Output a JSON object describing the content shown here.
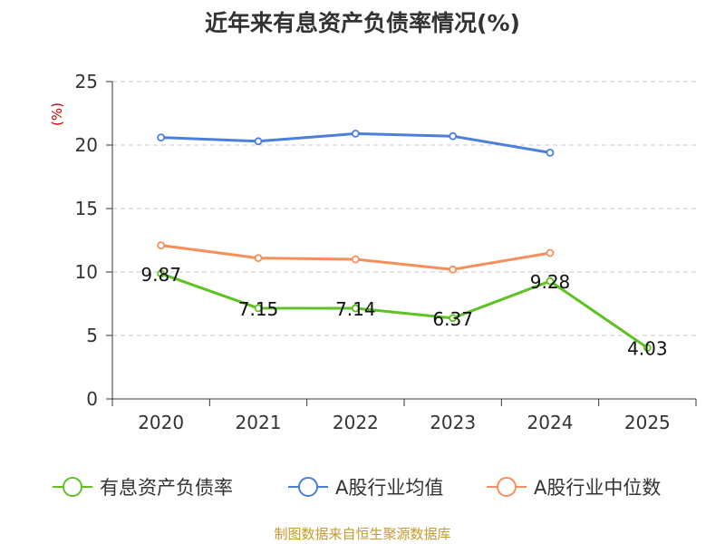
{
  "chart_data": {
    "type": "line",
    "title": "近年来有息资产负债率情况(%)",
    "ylabel": "(%)",
    "xlabel": "",
    "categories": [
      "2020",
      "2021",
      "2022",
      "2023",
      "2024",
      "2025"
    ],
    "ylim": [
      0,
      25
    ],
    "yticks": [
      0,
      5,
      10,
      15,
      20,
      25
    ],
    "grid": true,
    "legend_position": "bottom",
    "series": [
      {
        "name": "有息资产负债率",
        "color": "#5ec124",
        "values": [
          9.87,
          7.15,
          7.14,
          6.37,
          9.28,
          4.03
        ],
        "labels": [
          "9.87",
          "7.15",
          "7.14",
          "6.37",
          "9.28",
          "4.03"
        ]
      },
      {
        "name": "A股行业均值",
        "color": "#4c7fdc",
        "values": [
          20.6,
          20.3,
          20.9,
          20.7,
          19.4,
          null
        ],
        "labels": []
      },
      {
        "name": "A股行业中位数",
        "color": "#f68f5a",
        "values": [
          12.1,
          11.1,
          11.0,
          10.2,
          11.5,
          null
        ],
        "labels": []
      }
    ]
  },
  "source": "制图数据来自恒生聚源数据库"
}
